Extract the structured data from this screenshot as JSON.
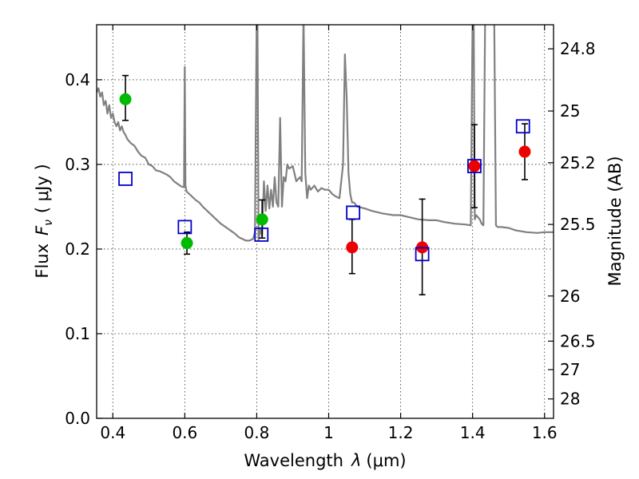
{
  "chart_data": {
    "type": "scatter",
    "xlabel_prefix": "Wavelength",
    "xlabel_var": "λ",
    "xlabel_unit": "(μm)",
    "ylabel_prefix": "Flux",
    "ylabel_var": "F",
    "ylabel_sub": "ν",
    "ylabel_unit": "( μJy )",
    "y2label": "Magnitude (AB)",
    "xlim": [
      0.355,
      1.625
    ],
    "ylim": [
      0.0,
      0.465
    ],
    "grid": true,
    "x_ticks": [
      {
        "value": 0.4,
        "label": "0.4"
      },
      {
        "value": 0.6,
        "label": "0.6"
      },
      {
        "value": 0.8,
        "label": "0.8"
      },
      {
        "value": 1.0,
        "label": "1"
      },
      {
        "value": 1.2,
        "label": "1.2"
      },
      {
        "value": 1.4,
        "label": "1.4"
      },
      {
        "value": 1.6,
        "label": "1.6"
      }
    ],
    "y_ticks": [
      {
        "value": 0.0,
        "label": "0.0"
      },
      {
        "value": 0.1,
        "label": "0.1"
      },
      {
        "value": 0.2,
        "label": "0.2"
      },
      {
        "value": 0.3,
        "label": "0.3"
      },
      {
        "value": 0.4,
        "label": "0.4"
      }
    ],
    "y2_ticks": [
      {
        "value": 24.8,
        "label": "24.8"
      },
      {
        "value": 25.0,
        "label": "25"
      },
      {
        "value": 25.2,
        "label": "25.2"
      },
      {
        "value": 25.5,
        "label": "25.5"
      },
      {
        "value": 26.0,
        "label": "26"
      },
      {
        "value": 26.5,
        "label": "26.5"
      },
      {
        "value": 27.0,
        "label": "27"
      },
      {
        "value": 28.0,
        "label": "28"
      }
    ],
    "colors": {
      "spectrum": "#808080",
      "green": "#00bb00",
      "red": "#ee0000",
      "model": "#0000cc",
      "errorbar": "#000000"
    },
    "spectrum": {
      "x": [
        0.355,
        0.36,
        0.365,
        0.37,
        0.375,
        0.38,
        0.385,
        0.39,
        0.395,
        0.4,
        0.405,
        0.41,
        0.415,
        0.42,
        0.425,
        0.43,
        0.435,
        0.44,
        0.45,
        0.46,
        0.47,
        0.48,
        0.49,
        0.5,
        0.51,
        0.52,
        0.53,
        0.54,
        0.55,
        0.56,
        0.57,
        0.58,
        0.59,
        0.598,
        0.6,
        0.602,
        0.605,
        0.61,
        0.62,
        0.63,
        0.64,
        0.65,
        0.66,
        0.67,
        0.68,
        0.69,
        0.7,
        0.71,
        0.72,
        0.73,
        0.74,
        0.75,
        0.76,
        0.77,
        0.78,
        0.79,
        0.795,
        0.8,
        0.802,
        0.805,
        0.81,
        0.815,
        0.82,
        0.825,
        0.83,
        0.835,
        0.84,
        0.845,
        0.85,
        0.855,
        0.86,
        0.865,
        0.87,
        0.875,
        0.88,
        0.885,
        0.89,
        0.9,
        0.91,
        0.92,
        0.925,
        0.93,
        0.935,
        0.94,
        0.945,
        0.95,
        0.96,
        0.97,
        0.98,
        0.99,
        1.0,
        1.01,
        1.02,
        1.03,
        1.04,
        1.045,
        1.05,
        1.055,
        1.06,
        1.065,
        1.07,
        1.08,
        1.1,
        1.12,
        1.15,
        1.18,
        1.2,
        1.22,
        1.25,
        1.28,
        1.3,
        1.32,
        1.35,
        1.38,
        1.395,
        1.4,
        1.403,
        1.406,
        1.41,
        1.42,
        1.425,
        1.43,
        1.435,
        1.44,
        1.45,
        1.455,
        1.46,
        1.465,
        1.47,
        1.48,
        1.5,
        1.52,
        1.55,
        1.58,
        1.6,
        1.625
      ],
      "y": [
        0.385,
        0.39,
        0.38,
        0.385,
        0.37,
        0.375,
        0.36,
        0.37,
        0.355,
        0.36,
        0.35,
        0.345,
        0.35,
        0.34,
        0.345,
        0.338,
        0.335,
        0.33,
        0.325,
        0.322,
        0.315,
        0.31,
        0.308,
        0.3,
        0.298,
        0.293,
        0.292,
        0.29,
        0.288,
        0.285,
        0.28,
        0.277,
        0.274,
        0.273,
        0.415,
        0.275,
        0.268,
        0.266,
        0.262,
        0.258,
        0.255,
        0.25,
        0.246,
        0.242,
        0.238,
        0.234,
        0.23,
        0.227,
        0.224,
        0.221,
        0.218,
        0.214,
        0.212,
        0.21,
        0.21,
        0.212,
        0.22,
        0.48,
        0.48,
        0.21,
        0.225,
        0.215,
        0.28,
        0.245,
        0.275,
        0.248,
        0.27,
        0.25,
        0.285,
        0.255,
        0.25,
        0.355,
        0.25,
        0.285,
        0.28,
        0.3,
        0.295,
        0.298,
        0.28,
        0.285,
        0.28,
        0.48,
        0.29,
        0.26,
        0.275,
        0.27,
        0.275,
        0.268,
        0.272,
        0.27,
        0.27,
        0.265,
        0.262,
        0.26,
        0.3,
        0.43,
        0.38,
        0.29,
        0.265,
        0.255,
        0.255,
        0.25,
        0.248,
        0.245,
        0.242,
        0.24,
        0.24,
        0.238,
        0.235,
        0.234,
        0.234,
        0.232,
        0.23,
        0.229,
        0.228,
        0.48,
        0.48,
        0.235,
        0.24,
        0.235,
        0.23,
        0.228,
        0.48,
        0.48,
        0.48,
        0.48,
        0.48,
        0.228,
        0.226,
        0.226,
        0.225,
        0.222,
        0.22,
        0.219,
        0.22,
        0.22
      ]
    },
    "observed_green": [
      {
        "x": 0.435,
        "y": 0.377,
        "err_lo": 0.025,
        "err_hi": 0.028
      },
      {
        "x": 0.606,
        "y": 0.207,
        "err_lo": 0.013,
        "err_hi": 0.013
      },
      {
        "x": 0.815,
        "y": 0.235,
        "err_lo": 0.022,
        "err_hi": 0.023
      }
    ],
    "observed_red": [
      {
        "x": 1.065,
        "y": 0.202,
        "err_lo": 0.031,
        "err_hi": 0.033
      },
      {
        "x": 1.26,
        "y": 0.202,
        "err_lo": 0.056,
        "err_hi": 0.057
      },
      {
        "x": 1.405,
        "y": 0.298,
        "err_lo": 0.049,
        "err_hi": 0.049
      },
      {
        "x": 1.545,
        "y": 0.315,
        "err_lo": 0.033,
        "err_hi": 0.033
      }
    ],
    "model_squares": [
      {
        "x": 0.435,
        "y": 0.283
      },
      {
        "x": 0.6,
        "y": 0.226
      },
      {
        "x": 0.813,
        "y": 0.217
      },
      {
        "x": 1.068,
        "y": 0.243
      },
      {
        "x": 1.26,
        "y": 0.194
      },
      {
        "x": 1.405,
        "y": 0.298
      },
      {
        "x": 1.54,
        "y": 0.345
      }
    ]
  }
}
